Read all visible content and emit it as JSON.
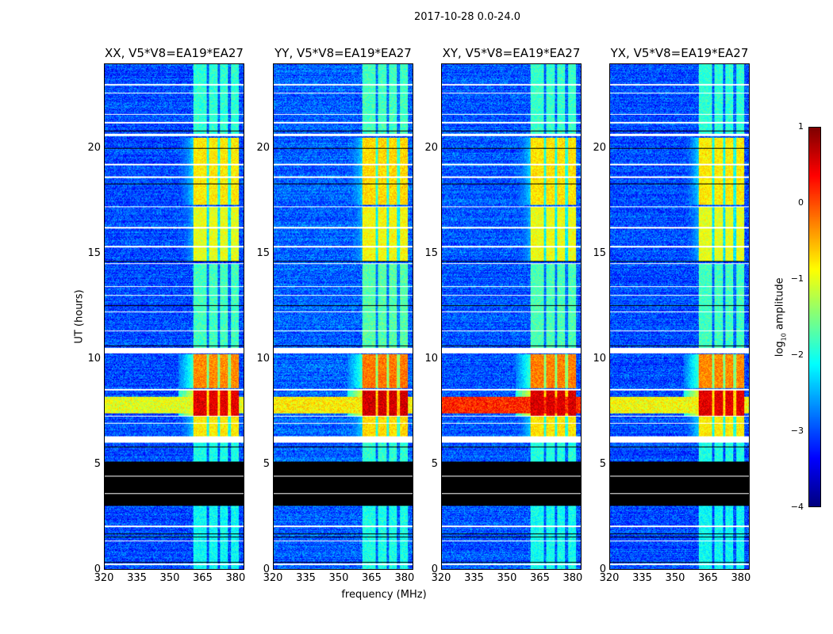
{
  "chart_data": {
    "type": "heatmap",
    "title": "2017-10-28 0.0-24.0",
    "xlabel": "frequency (MHz)",
    "ylabel": "UT (hours)",
    "xlim": [
      320,
      384
    ],
    "ylim": [
      0,
      24
    ],
    "xticks": [
      "320",
      "335",
      "350",
      "365",
      "380"
    ],
    "xtick_values": [
      320,
      335,
      350,
      365,
      380
    ],
    "yticks": [
      "0",
      "5",
      "10",
      "15",
      "20"
    ],
    "ytick_values": [
      0,
      5,
      10,
      15,
      20
    ],
    "colorbar": {
      "label": "log10 amplitude",
      "label_main": "log",
      "label_sub": "10",
      "label_rest": " amplitude",
      "range": [
        -4,
        1
      ],
      "ticks": [
        "1",
        "0",
        "−1",
        "−2",
        "−3",
        "−4"
      ],
      "tick_values": [
        1,
        0,
        -1,
        -2,
        -3,
        -4
      ],
      "colormap": "jet"
    },
    "panels": [
      {
        "title": "XX, V5*V8=EA19*EA27",
        "broadband_level": -1.0,
        "offset": 0.0
      },
      {
        "title": "YY, V5*V8=EA19*EA27",
        "broadband_level": -0.8,
        "offset": 0.1
      },
      {
        "title": "XY, V5*V8=EA19*EA27",
        "broadband_level": 0.2,
        "offset": 0.05
      },
      {
        "title": "YX, V5*V8=EA19*EA27",
        "broadband_level": -0.9,
        "offset": 0.0
      }
    ],
    "background_level": -3.0,
    "rfi_band_mhz": [
      361,
      382
    ],
    "rfi_gaps_mhz": [
      367.5,
      372.5,
      377.5
    ],
    "rfi_segments_hours": [
      {
        "t0": 0.0,
        "t1": 5.1,
        "level": -2.1
      },
      {
        "t0": 5.1,
        "t1": 6.0,
        "level": -2.0
      },
      {
        "t0": 6.3,
        "t1": 7.25,
        "level": -0.8
      },
      {
        "t0": 7.3,
        "t1": 8.5,
        "level": 0.5
      },
      {
        "t0": 8.6,
        "t1": 10.2,
        "level": -0.3
      },
      {
        "t0": 10.5,
        "t1": 14.5,
        "level": -1.8
      },
      {
        "t0": 14.6,
        "t1": 17.2,
        "level": -1.0
      },
      {
        "t0": 17.3,
        "t1": 20.5,
        "level": -0.8
      },
      {
        "t0": 20.6,
        "t1": 24.0,
        "level": -1.9
      }
    ],
    "broadband_segment_hours": [
      7.4,
      8.2
    ],
    "nodata_blocks_hours": [
      [
        3.0,
        5.1
      ]
    ],
    "flagged_rows_hours": [
      [
        0.2,
        0.25
      ],
      [
        2.0,
        2.05
      ],
      [
        1.3,
        1.35
      ],
      [
        4.4,
        4.45
      ],
      [
        3.55,
        3.6
      ],
      [
        6.0,
        6.3
      ],
      [
        6.9,
        6.95
      ],
      [
        7.25,
        7.3
      ],
      [
        8.5,
        8.55
      ],
      [
        10.25,
        10.5
      ],
      [
        11.3,
        11.35
      ],
      [
        12.2,
        12.25
      ],
      [
        13.0,
        13.05
      ],
      [
        13.4,
        13.45
      ],
      [
        14.5,
        14.55
      ],
      [
        15.3,
        15.35
      ],
      [
        16.2,
        16.25
      ],
      [
        17.2,
        17.25
      ],
      [
        18.6,
        18.65
      ],
      [
        19.2,
        19.25
      ],
      [
        20.6,
        20.7
      ],
      [
        21.2,
        21.25
      ],
      [
        21.6,
        21.65
      ],
      [
        22.6,
        22.65
      ],
      [
        23.0,
        23.05
      ]
    ],
    "black_rows_hours": [
      [
        0.3,
        0.33
      ],
      [
        1.5,
        1.53
      ],
      [
        1.65,
        1.68
      ],
      [
        2.8,
        2.83
      ],
      [
        5.8,
        5.83
      ],
      [
        10.6,
        10.63
      ],
      [
        12.5,
        12.53
      ],
      [
        14.6,
        14.63
      ],
      [
        17.3,
        17.33
      ],
      [
        18.3,
        18.33
      ],
      [
        20.0,
        20.03
      ],
      [
        20.8,
        20.83
      ]
    ]
  }
}
